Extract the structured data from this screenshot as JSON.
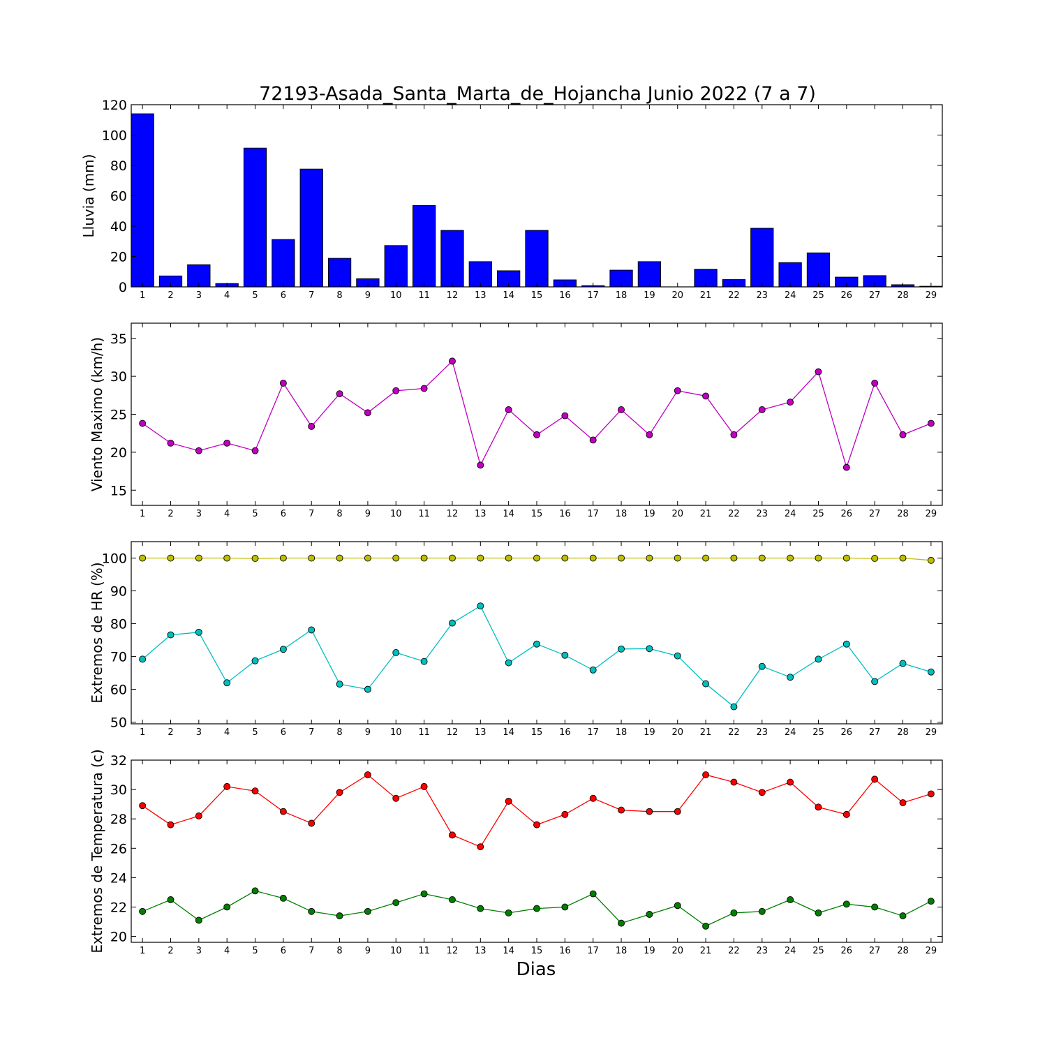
{
  "figure": {
    "title": "72193-Asada_Santa_Marta_de_Hojancha Junio 2022  (7 a 7)",
    "xlabel": "Dias"
  },
  "chart_data": [
    {
      "type": "bar",
      "ylabel": "Lluvia (mm)",
      "ylim": [
        0,
        120
      ],
      "yticks": [
        0,
        20,
        40,
        60,
        80,
        100,
        120
      ],
      "categories": [
        "1",
        "2",
        "3",
        "4",
        "5",
        "6",
        "7",
        "8",
        "9",
        "10",
        "11",
        "12",
        "13",
        "14",
        "15",
        "16",
        "17",
        "18",
        "19",
        "20",
        "21",
        "22",
        "23",
        "24",
        "25",
        "26",
        "27",
        "28",
        "29"
      ],
      "series": [
        {
          "color": "#0000ff",
          "values": [
            114,
            7.2,
            14.6,
            2.2,
            91.4,
            31.2,
            77.6,
            18.8,
            5.4,
            27.2,
            53.6,
            37.2,
            16.6,
            10.6,
            37.2,
            4.6,
            0.8,
            11,
            16.6,
            0,
            11.6,
            4.8,
            38.6,
            16,
            22.4,
            6.4,
            7.4,
            1.4,
            0.4
          ]
        }
      ]
    },
    {
      "type": "line",
      "ylabel": "Viento Maximo (km/h)",
      "ylim": [
        13,
        37
      ],
      "yticks": [
        15,
        20,
        25,
        30,
        35
      ],
      "categories": [
        "1",
        "2",
        "3",
        "4",
        "5",
        "6",
        "7",
        "8",
        "9",
        "10",
        "11",
        "12",
        "13",
        "14",
        "15",
        "16",
        "17",
        "18",
        "19",
        "20",
        "21",
        "22",
        "23",
        "24",
        "25",
        "26",
        "27",
        "28",
        "29"
      ],
      "series": [
        {
          "color": "#bf00bf",
          "values": [
            23.8,
            21.2,
            20.2,
            21.2,
            20.2,
            29.1,
            23.4,
            27.7,
            25.2,
            28.1,
            28.4,
            32.0,
            18.3,
            25.6,
            22.3,
            24.8,
            21.6,
            25.6,
            22.3,
            28.1,
            27.4,
            22.3,
            25.6,
            26.6,
            30.6,
            18.0,
            29.1,
            22.3,
            23.8
          ]
        }
      ]
    },
    {
      "type": "line",
      "ylabel": "Extremos de HR (%)",
      "ylim": [
        49.5,
        105
      ],
      "yticks": [
        50,
        60,
        70,
        80,
        90,
        100
      ],
      "categories": [
        "1",
        "2",
        "3",
        "4",
        "5",
        "6",
        "7",
        "8",
        "9",
        "10",
        "11",
        "12",
        "13",
        "14",
        "15",
        "16",
        "17",
        "18",
        "19",
        "20",
        "21",
        "22",
        "23",
        "24",
        "25",
        "26",
        "27",
        "28",
        "29"
      ],
      "series": [
        {
          "color": "#bfbf00",
          "values": [
            100,
            100,
            100,
            100,
            99.9,
            100,
            100,
            100,
            100,
            100,
            100,
            100,
            100,
            100,
            100,
            100,
            100,
            100,
            100,
            100,
            100,
            100,
            100,
            100,
            100,
            100,
            99.9,
            100,
            99.3
          ]
        },
        {
          "color": "#00bfbf",
          "values": [
            69.2,
            76.6,
            77.4,
            62.0,
            68.7,
            72.2,
            78.1,
            61.6,
            60.0,
            71.2,
            68.5,
            80.2,
            85.4,
            68.1,
            73.8,
            70.4,
            65.9,
            72.3,
            72.4,
            70.2,
            61.7,
            54.7,
            67.0,
            63.7,
            69.2,
            73.8,
            62.4,
            67.9,
            65.3
          ]
        }
      ]
    },
    {
      "type": "line",
      "ylabel": "Extremos de Temperatura (c)",
      "ylim": [
        19.6,
        32
      ],
      "yticks": [
        20,
        22,
        24,
        26,
        28,
        30,
        32
      ],
      "categories": [
        "1",
        "2",
        "3",
        "4",
        "5",
        "6",
        "7",
        "8",
        "9",
        "10",
        "11",
        "12",
        "13",
        "14",
        "15",
        "16",
        "17",
        "18",
        "19",
        "20",
        "21",
        "22",
        "23",
        "24",
        "25",
        "26",
        "27",
        "28",
        "29"
      ],
      "series": [
        {
          "color": "#ff0000",
          "values": [
            28.9,
            27.6,
            28.2,
            30.2,
            29.9,
            28.5,
            27.7,
            29.8,
            31.0,
            29.4,
            30.2,
            26.9,
            26.1,
            29.2,
            27.6,
            28.3,
            29.4,
            28.6,
            28.5,
            28.5,
            31.0,
            30.5,
            29.8,
            30.5,
            28.8,
            28.3,
            30.7,
            29.1,
            29.7
          ]
        },
        {
          "color": "#007f00",
          "values": [
            21.7,
            22.5,
            21.1,
            22.0,
            23.1,
            22.6,
            21.7,
            21.4,
            21.7,
            22.3,
            22.9,
            22.5,
            21.9,
            21.6,
            21.9,
            22.0,
            22.9,
            20.9,
            21.5,
            22.1,
            20.7,
            21.6,
            21.7,
            22.5,
            21.6,
            22.2,
            22.0,
            21.4,
            22.4
          ]
        }
      ]
    }
  ]
}
